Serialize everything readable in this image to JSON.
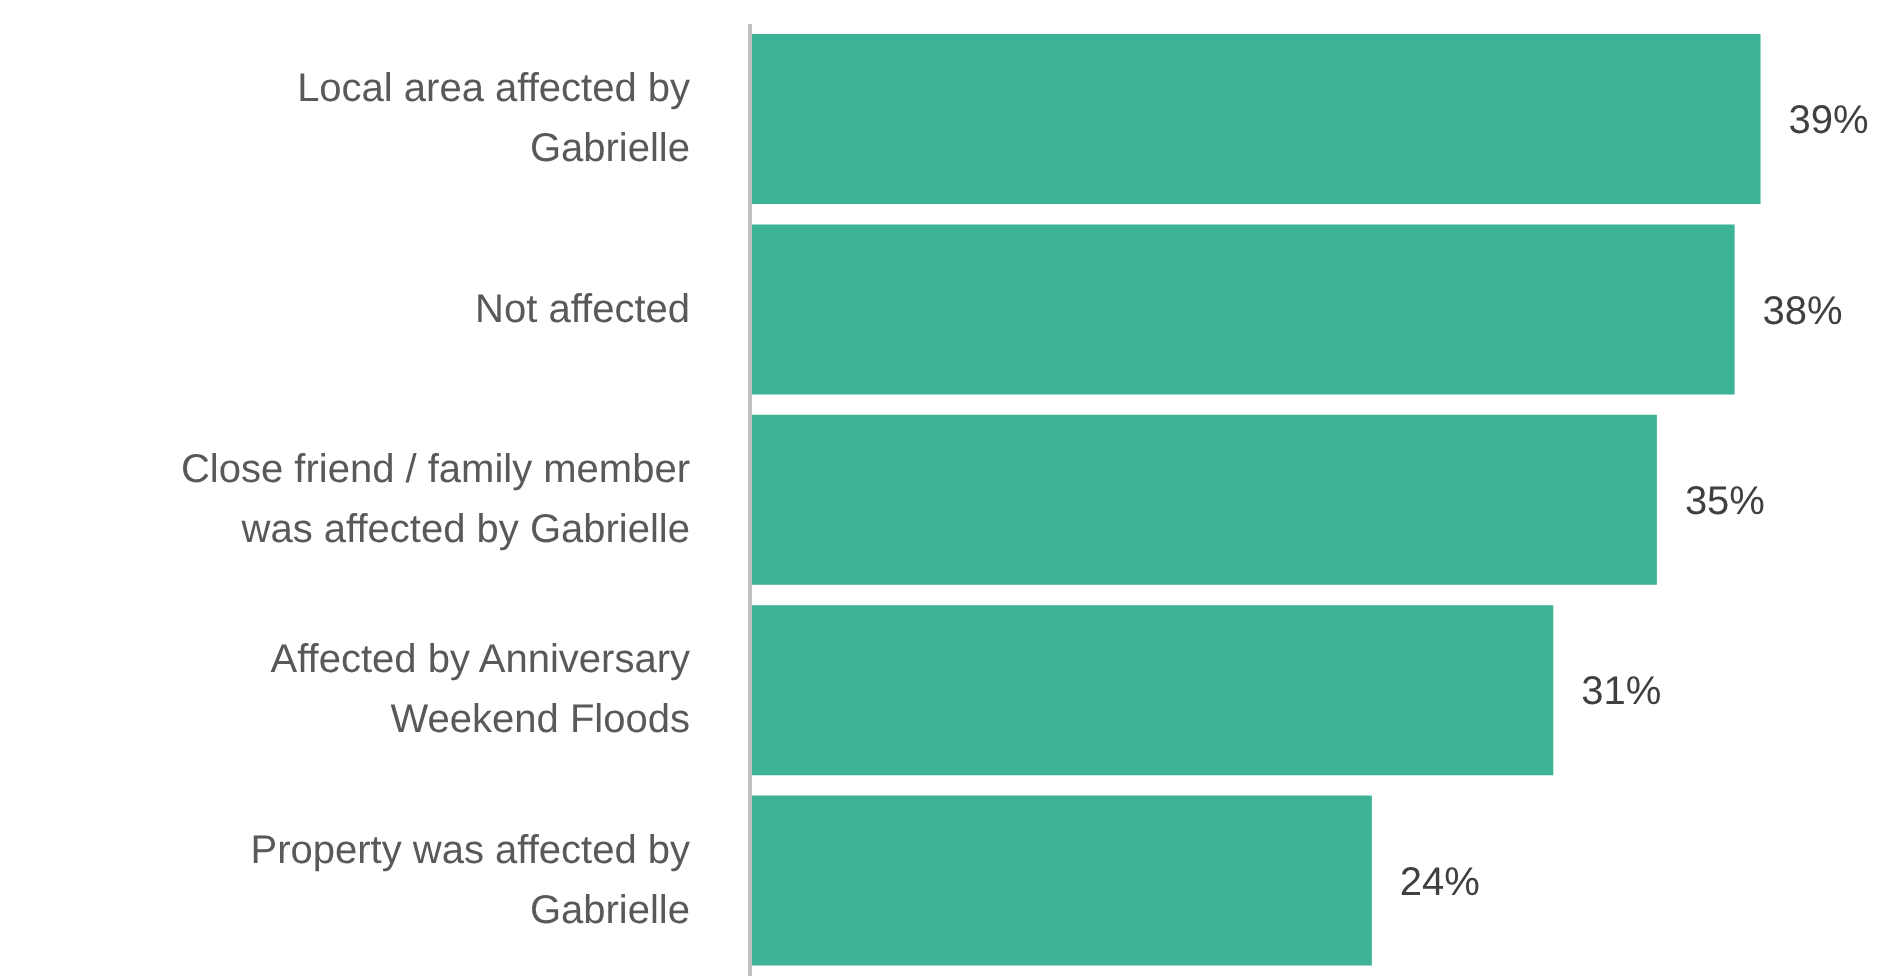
{
  "chart_data": {
    "type": "bar",
    "orientation": "horizontal",
    "categories": [
      "Local area affected by Gabrielle",
      "Not affected",
      "Close friend / family member was affected by Gabrielle",
      "Affected by Anniversary Weekend Floods",
      "Property was affected by Gabrielle"
    ],
    "values": [
      39,
      38,
      35,
      31,
      24
    ],
    "value_labels": [
      "39%",
      "38%",
      "35%",
      "31%",
      "24%"
    ],
    "color": "#3bb394",
    "tick_labels": "y",
    "grid": false,
    "legend": false
  }
}
